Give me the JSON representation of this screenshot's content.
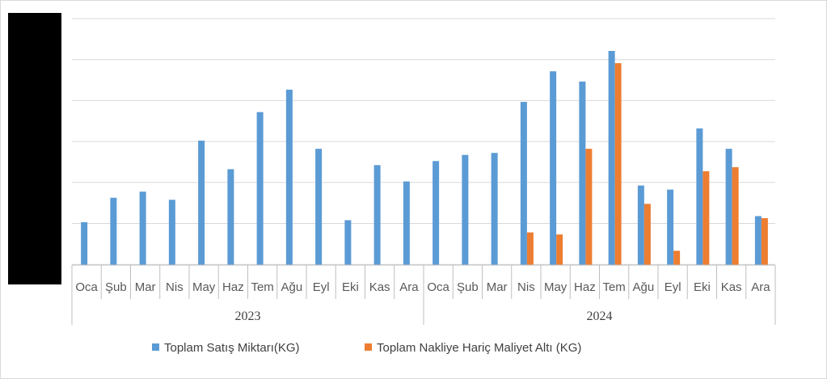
{
  "chart_data": {
    "type": "bar",
    "title": "",
    "ylim": [
      0,
      1.05
    ],
    "grid": true,
    "legend_placement": "bottom",
    "years": [
      "2023",
      "2024"
    ],
    "categories": [
      "Oca",
      "Şub",
      "Mar",
      "Nis",
      "May",
      "Haz",
      "Tem",
      "Ağu",
      "Eyl",
      "Eki",
      "Kas",
      "Ara",
      "Oca",
      "Şub",
      "Mar",
      "Nis",
      "May",
      "Haz",
      "Tem",
      "Ağu",
      "Eyl",
      "Eki",
      "Kas",
      "Ara"
    ],
    "series": [
      {
        "name": "Toplam Satış Miktarı(KG)",
        "color": "#5b9bd5",
        "values": [
          0.21,
          0.33,
          0.36,
          0.32,
          0.61,
          0.47,
          0.75,
          0.86,
          0.57,
          0.22,
          0.49,
          0.41,
          0.51,
          0.54,
          0.55,
          0.8,
          0.95,
          0.9,
          1.05,
          0.39,
          0.37,
          0.67,
          0.57,
          0.24
        ]
      },
      {
        "name": "Toplam Nakliye Hariç Maliyet Altı (KG)",
        "color": "#ed7d31",
        "values": [
          null,
          null,
          null,
          null,
          null,
          null,
          null,
          null,
          null,
          null,
          null,
          null,
          null,
          null,
          null,
          0.16,
          0.15,
          0.57,
          0.99,
          0.3,
          0.07,
          0.46,
          0.48,
          0.23
        ]
      }
    ]
  }
}
